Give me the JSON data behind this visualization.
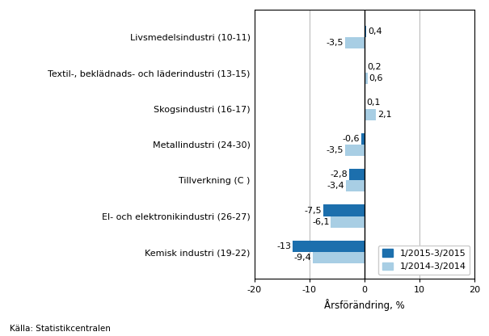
{
  "categories": [
    "Kemisk industri (19-22)",
    "El- och elektronikindustri (26-27)",
    "Tillverkning (C )",
    "Metallindustri (24-30)",
    "Skogsindustri (16-17)",
    "Textil-, beklädnads- och läderindustri (13-15)",
    "Livsmedelsindustri (10-11)"
  ],
  "series1_values": [
    -13.0,
    -7.5,
    -2.8,
    -0.6,
    0.1,
    0.2,
    0.4
  ],
  "series2_values": [
    -9.4,
    -6.1,
    -3.4,
    -3.5,
    2.1,
    0.6,
    -3.5
  ],
  "series1_label": "1/2015-3/2015",
  "series2_label": "1/2014-3/2014",
  "series1_color": "#1C6FAD",
  "series2_color": "#A8CEE4",
  "xlabel": "Årsförändring, %",
  "xlim": [
    -20,
    20
  ],
  "xticks": [
    -20,
    -10,
    0,
    10,
    20
  ],
  "source": "Källa: Statistikcentralen",
  "bar_height": 0.32,
  "label_fontsize": 8,
  "tick_fontsize": 8,
  "axis_fontsize": 8.5
}
